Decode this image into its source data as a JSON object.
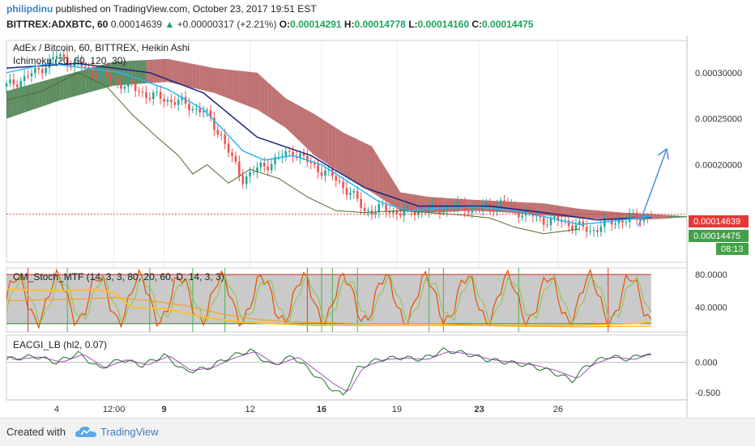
{
  "header": {
    "author": "philipdinu",
    "published_text": " published on TradingView.com, October 23, 2017 19:51 EST",
    "symbol": "BITTREX:ADXBTC, 60",
    "last": "0.00014639",
    "change": "+0.00000317 (+2.21%)",
    "o_label": "O:",
    "o_value": "0.00014291",
    "h_label": "H:",
    "h_value": "0.00014778",
    "l_label": "L:",
    "l_value": "0.00014160",
    "c_label": "C:",
    "c_value": "0.00014475"
  },
  "footer": {
    "created_with": "Created with",
    "brand": "TradingView"
  },
  "colors": {
    "up": "#26a69a",
    "down": "#ef5350",
    "tenkan": "#29b6f6",
    "kijun": "#1a237e",
    "cloud_bull": "#1b5e20",
    "cloud_bear": "#8b0000",
    "lagging": "#556b2f",
    "arrow": "#4a90e2",
    "price_badge": "#e53935",
    "close_badge": "#43a047"
  },
  "chart_data": [
    {
      "type": "candlestick",
      "title": "AdEx / Bitcoin, 60, BITTREX, Heikin Ashi",
      "indicator_label": "Ichimoku (20, 60, 120, 30)",
      "x_tick_labels": [
        "4",
        "12:00",
        "9",
        "12",
        "16",
        "19",
        "23",
        "26"
      ],
      "x_tick_bold": [
        false,
        false,
        true,
        false,
        true,
        false,
        true,
        false
      ],
      "y_axis_labels": [
        "0.00030000",
        "0.00025000",
        "0.00020000"
      ],
      "ylim": [
        9.4e-05,
        0.000335
      ],
      "price_badge": "0.00014639",
      "close_badge": "0.00014475",
      "countdown_badge": "08:13",
      "price_path": [
        [
          0,
          0.000285
        ],
        [
          8,
          0.0003
        ],
        [
          14,
          0.000318
        ],
        [
          22,
          0.000305
        ],
        [
          30,
          0.000292
        ],
        [
          40,
          0.000275
        ],
        [
          48,
          0.000268
        ],
        [
          55,
          0.000258
        ],
        [
          60,
          0.000232
        ],
        [
          63,
          0.000205
        ],
        [
          66,
          0.000185
        ],
        [
          70,
          0.000195
        ],
        [
          75,
          0.000205
        ],
        [
          80,
          0.000215
        ],
        [
          85,
          0.0002
        ],
        [
          90,
          0.00019
        ],
        [
          96,
          0.00017
        ],
        [
          100,
          0.00015
        ],
        [
          105,
          0.000152
        ],
        [
          110,
          0.000148
        ],
        [
          118,
          0.000152
        ],
        [
          126,
          0.000155
        ],
        [
          132,
          0.000152
        ],
        [
          138,
          0.000158
        ],
        [
          144,
          0.000148
        ],
        [
          150,
          0.00014
        ],
        [
          156,
          0.000138
        ],
        [
          160,
          0.000132
        ],
        [
          163,
          0.000128
        ],
        [
          167,
          0.000136
        ],
        [
          172,
          0.00014
        ],
        [
          176,
          0.000142
        ],
        [
          180,
          0.000146
        ]
      ],
      "tenkan_path": [
        [
          0,
          0.0003
        ],
        [
          12,
          0.00031
        ],
        [
          22,
          0.000305
        ],
        [
          32,
          0.0003
        ],
        [
          45,
          0.000282
        ],
        [
          55,
          0.00026
        ],
        [
          60,
          0.00024
        ],
        [
          66,
          0.000215
        ],
        [
          72,
          0.000205
        ],
        [
          80,
          0.00021
        ],
        [
          88,
          0.0002
        ],
        [
          96,
          0.00018
        ],
        [
          104,
          0.00016
        ],
        [
          112,
          0.00015
        ],
        [
          122,
          0.000153
        ],
        [
          132,
          0.000154
        ],
        [
          142,
          0.00015
        ],
        [
          152,
          0.000142
        ],
        [
          160,
          0.000135
        ],
        [
          168,
          0.000138
        ],
        [
          176,
          0.000142
        ],
        [
          180,
          0.000144
        ]
      ],
      "kijun_path": [
        [
          0,
          0.000305
        ],
        [
          20,
          0.00031
        ],
        [
          40,
          0.0003
        ],
        [
          55,
          0.000278
        ],
        [
          70,
          0.00023
        ],
        [
          85,
          0.00021
        ],
        [
          100,
          0.000175
        ],
        [
          115,
          0.000155
        ],
        [
          135,
          0.000155
        ],
        [
          150,
          0.000148
        ],
        [
          165,
          0.00014
        ],
        [
          180,
          0.000143
        ]
      ],
      "cloud_top": [
        [
          0,
          0.00028
        ],
        [
          15,
          0.000296
        ],
        [
          30,
          0.000312
        ],
        [
          45,
          0.000315
        ],
        [
          58,
          0.000305
        ],
        [
          70,
          0.0003
        ],
        [
          78,
          0.000272
        ],
        [
          86,
          0.000255
        ],
        [
          94,
          0.000235
        ],
        [
          102,
          0.00022
        ],
        [
          110,
          0.00017
        ],
        [
          118,
          0.000165
        ],
        [
          130,
          0.000162
        ],
        [
          140,
          0.00016
        ],
        [
          150,
          0.000158
        ],
        [
          160,
          0.000152
        ],
        [
          172,
          0.000148
        ],
        [
          182,
          0.000146
        ],
        [
          190,
          0.000144
        ]
      ],
      "cloud_bottom": [
        [
          0,
          0.00025
        ],
        [
          15,
          0.00027
        ],
        [
          30,
          0.000286
        ],
        [
          45,
          0.00029
        ],
        [
          58,
          0.000278
        ],
        [
          70,
          0.00026
        ],
        [
          78,
          0.00024
        ],
        [
          86,
          0.00021
        ],
        [
          94,
          0.00019
        ],
        [
          102,
          0.00017
        ],
        [
          110,
          0.00015
        ],
        [
          118,
          0.000148
        ],
        [
          130,
          0.00015
        ],
        [
          140,
          0.000148
        ],
        [
          150,
          0.000145
        ],
        [
          160,
          0.000142
        ],
        [
          172,
          0.00014
        ],
        [
          182,
          0.000141
        ],
        [
          190,
          0.000143
        ]
      ],
      "lagging_path": [
        [
          0,
          0.00027
        ],
        [
          10,
          0.00028
        ],
        [
          20,
          0.0003
        ],
        [
          28,
          0.000285
        ],
        [
          35,
          0.000255
        ],
        [
          42,
          0.00023
        ],
        [
          48,
          0.00021
        ],
        [
          52,
          0.00019
        ],
        [
          56,
          0.0002
        ],
        [
          62,
          0.00018
        ],
        [
          68,
          0.000195
        ],
        [
          76,
          0.000185
        ],
        [
          84,
          0.000165
        ],
        [
          92,
          0.00015
        ],
        [
          100,
          0.000148
        ],
        [
          110,
          0.00015
        ],
        [
          118,
          0.000148
        ],
        [
          128,
          0.000145
        ],
        [
          135,
          0.000142
        ],
        [
          142,
          0.000132
        ],
        [
          150,
          0.000125
        ],
        [
          156,
          0.000128
        ],
        [
          160,
          0.00013
        ]
      ]
    },
    {
      "type": "line",
      "title": "CM_Stoch_MTF (14, 3, 3, 80, 20, 60, D, 14, 3, 3)",
      "y_axis_labels": [
        "80.0000",
        "40.0000"
      ],
      "ylim": [
        10,
        88
      ],
      "upper_band": 80,
      "lower_band": 20,
      "slow_path": [
        [
          0,
          62
        ],
        [
          15,
          60
        ],
        [
          25,
          62
        ],
        [
          30,
          58
        ],
        [
          35,
          40
        ],
        [
          45,
          38
        ],
        [
          55,
          28
        ],
        [
          65,
          22
        ],
        [
          75,
          20
        ],
        [
          85,
          18
        ],
        [
          100,
          18
        ],
        [
          120,
          18
        ],
        [
          140,
          18
        ],
        [
          160,
          18
        ],
        [
          175,
          20
        ],
        [
          180,
          22
        ]
      ],
      "slow2_path": [
        [
          0,
          48
        ],
        [
          20,
          50
        ],
        [
          30,
          52
        ],
        [
          40,
          48
        ],
        [
          50,
          42
        ],
        [
          60,
          32
        ],
        [
          70,
          25
        ],
        [
          80,
          22
        ],
        [
          100,
          20
        ],
        [
          120,
          20
        ],
        [
          140,
          17
        ],
        [
          160,
          16
        ],
        [
          180,
          17
        ]
      ]
    },
    {
      "type": "line",
      "title": "EACGI_LB (hl2, 0.07)",
      "y_axis_labels": [
        "0.000",
        "-0.500"
      ],
      "ylim": [
        -0.62,
        0.45
      ],
      "series_path": [
        [
          0,
          0.05
        ],
        [
          8,
          0.1
        ],
        [
          14,
          0.0
        ],
        [
          20,
          0.15
        ],
        [
          26,
          -0.1
        ],
        [
          32,
          0.05
        ],
        [
          38,
          -0.05
        ],
        [
          44,
          0.12
        ],
        [
          50,
          -0.15
        ],
        [
          56,
          -0.1
        ],
        [
          62,
          0.08
        ],
        [
          68,
          0.2
        ],
        [
          74,
          -0.05
        ],
        [
          80,
          0.1
        ],
        [
          86,
          -0.2
        ],
        [
          90,
          -0.4
        ],
        [
          94,
          -0.55
        ],
        [
          98,
          -0.1
        ],
        [
          104,
          0.05
        ],
        [
          110,
          0.08
        ],
        [
          116,
          0.05
        ],
        [
          122,
          0.2
        ],
        [
          128,
          0.15
        ],
        [
          134,
          0.05
        ],
        [
          140,
          0.0
        ],
        [
          146,
          -0.05
        ],
        [
          152,
          -0.15
        ],
        [
          158,
          -0.3
        ],
        [
          162,
          -0.05
        ],
        [
          168,
          0.1
        ],
        [
          174,
          0.05
        ],
        [
          178,
          0.15
        ],
        [
          180,
          0.1
        ]
      ]
    }
  ]
}
